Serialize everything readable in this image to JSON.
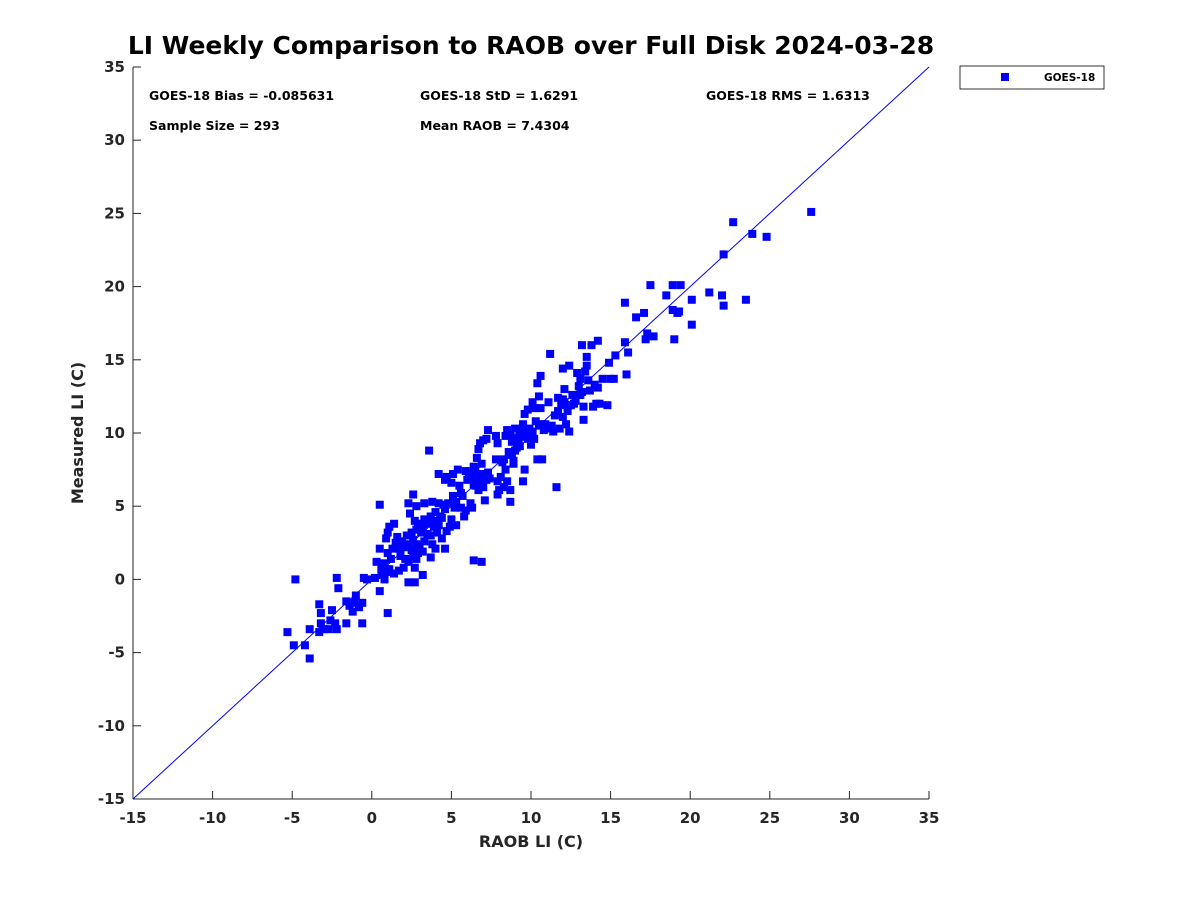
{
  "chart_data": {
    "type": "scatter",
    "title": "LI Weekly Comparison to RAOB over Full Disk 2024-03-28",
    "xlabel": "RAOB LI (C)",
    "ylabel": "Measured LI (C)",
    "xlim": [
      -15,
      35
    ],
    "ylim": [
      -15,
      35
    ],
    "x_ticks": [
      -15,
      -10,
      -5,
      0,
      5,
      10,
      15,
      20,
      25,
      30,
      35
    ],
    "y_ticks": [
      -15,
      -10,
      -5,
      0,
      5,
      10,
      15,
      20,
      25,
      30,
      35
    ],
    "grid": false,
    "legend_position": "outside-top-right",
    "reference_line": {
      "label": "1:1",
      "x": [
        -15,
        35
      ],
      "y": [
        -15,
        35
      ],
      "color": "#0000ff"
    },
    "annotations": [
      {
        "id": "bias",
        "text": "GOES-18 Bias = -0.085631"
      },
      {
        "id": "std",
        "text": "GOES-18 StD = 1.6291"
      },
      {
        "id": "rms",
        "text": "GOES-18 RMS = 1.6313"
      },
      {
        "id": "sample",
        "text": "Sample Size = 293"
      },
      {
        "id": "mean",
        "text": "Mean RAOB = 7.4304"
      }
    ],
    "series": [
      {
        "name": "GOES-18",
        "color": "#0000ff",
        "marker": "square",
        "points": [
          [
            -5.3,
            -3.6
          ],
          [
            -4.9,
            -4.5
          ],
          [
            -4.8,
            0.0
          ],
          [
            -4.2,
            -4.5
          ],
          [
            -3.9,
            -5.4
          ],
          [
            -3.9,
            -3.4
          ],
          [
            -3.3,
            -1.7
          ],
          [
            -3.3,
            -3.6
          ],
          [
            -3.2,
            -3.0
          ],
          [
            -3.2,
            -2.3
          ],
          [
            -3.0,
            -3.4
          ],
          [
            -2.7,
            -3.4
          ],
          [
            -2.6,
            -2.8
          ],
          [
            -2.5,
            -2.1
          ],
          [
            -2.3,
            -3.0
          ],
          [
            -2.2,
            -3.4
          ],
          [
            -2.2,
            0.1
          ],
          [
            -2.1,
            -0.6
          ],
          [
            -1.6,
            -1.5
          ],
          [
            -1.6,
            -3.0
          ],
          [
            -1.4,
            -1.8
          ],
          [
            -1.2,
            -2.2
          ],
          [
            -1.1,
            -1.6
          ],
          [
            -1.0,
            -1.1
          ],
          [
            -0.8,
            -1.9
          ],
          [
            -0.6,
            -1.6
          ],
          [
            -0.6,
            -3.0
          ],
          [
            -0.5,
            0.1
          ],
          [
            -0.3,
            0.0
          ],
          [
            0.2,
            0.1
          ],
          [
            0.3,
            1.2
          ],
          [
            0.5,
            5.1
          ],
          [
            0.5,
            2.1
          ],
          [
            0.5,
            -0.8
          ],
          [
            0.6,
            0.7
          ],
          [
            0.7,
            0.3
          ],
          [
            0.8,
            1.1
          ],
          [
            0.8,
            0.0
          ],
          [
            0.9,
            2.8
          ],
          [
            0.9,
            0.5
          ],
          [
            1.0,
            3.2
          ],
          [
            1.0,
            1.8
          ],
          [
            1.1,
            0.7
          ],
          [
            1.1,
            3.6
          ],
          [
            1.0,
            -2.3
          ],
          [
            1.2,
            1.4
          ],
          [
            1.3,
            2.1
          ],
          [
            1.4,
            3.8
          ],
          [
            1.4,
            0.4
          ],
          [
            1.5,
            2.5
          ],
          [
            1.6,
            2.9
          ],
          [
            1.7,
            0.6
          ],
          [
            1.8,
            2.0
          ],
          [
            1.8,
            1.6
          ],
          [
            1.9,
            2.6
          ],
          [
            2.0,
            0.8
          ],
          [
            2.0,
            2.2
          ],
          [
            2.1,
            1.4
          ],
          [
            2.2,
            3.0
          ],
          [
            2.3,
            5.2
          ],
          [
            2.3,
            2.4
          ],
          [
            2.3,
            -0.2
          ],
          [
            2.3,
            1.2
          ],
          [
            2.4,
            4.5
          ],
          [
            2.5,
            2.0
          ],
          [
            2.5,
            3.2
          ],
          [
            2.6,
            5.8
          ],
          [
            2.6,
            2.7
          ],
          [
            2.6,
            1.6
          ],
          [
            2.7,
            0.8
          ],
          [
            2.7,
            -0.2
          ],
          [
            2.7,
            4.0
          ],
          [
            2.8,
            2.4
          ],
          [
            2.8,
            3.4
          ],
          [
            2.8,
            1.4
          ],
          [
            2.8,
            5.0
          ],
          [
            2.9,
            1.8
          ],
          [
            3.0,
            2.2
          ],
          [
            3.1,
            3.2
          ],
          [
            3.2,
            0.3
          ],
          [
            3.2,
            3.6
          ],
          [
            3.2,
            1.9
          ],
          [
            3.3,
            4.1
          ],
          [
            3.3,
            2.6
          ],
          [
            3.3,
            5.2
          ],
          [
            3.5,
            3.8
          ],
          [
            3.5,
            3.1
          ],
          [
            3.6,
            8.8
          ],
          [
            3.7,
            4.3
          ],
          [
            3.7,
            3.0
          ],
          [
            3.7,
            1.5
          ],
          [
            3.8,
            2.4
          ],
          [
            3.8,
            5.3
          ],
          [
            3.9,
            4.0
          ],
          [
            3.9,
            3.6
          ],
          [
            4.0,
            4.6
          ],
          [
            4.0,
            2.1
          ],
          [
            4.1,
            3.2
          ],
          [
            4.2,
            5.2
          ],
          [
            4.2,
            3.7
          ],
          [
            4.2,
            7.2
          ],
          [
            4.3,
            4.3
          ],
          [
            4.4,
            2.8
          ],
          [
            4.5,
            5.1
          ],
          [
            4.6,
            4.8
          ],
          [
            4.6,
            2.1
          ],
          [
            4.6,
            6.8
          ],
          [
            4.7,
            3.3
          ],
          [
            4.7,
            7.0
          ],
          [
            4.8,
            5.2
          ],
          [
            4.9,
            3.6
          ],
          [
            5.0,
            4.1
          ],
          [
            5.0,
            6.6
          ],
          [
            5.1,
            5.7
          ],
          [
            5.1,
            7.2
          ],
          [
            5.2,
            4.9
          ],
          [
            5.3,
            5.3
          ],
          [
            5.3,
            3.7
          ],
          [
            5.4,
            7.5
          ],
          [
            5.5,
            6.4
          ],
          [
            5.6,
            5.9
          ],
          [
            5.6,
            4.9
          ],
          [
            5.7,
            5.7
          ],
          [
            5.8,
            4.3
          ],
          [
            5.9,
            7.4
          ],
          [
            5.9,
            4.7
          ],
          [
            6.0,
            6.8
          ],
          [
            6.1,
            6.9
          ],
          [
            6.2,
            5.2
          ],
          [
            6.2,
            7.0
          ],
          [
            6.3,
            7.2
          ],
          [
            6.3,
            4.9
          ],
          [
            6.4,
            6.5
          ],
          [
            6.4,
            7.7
          ],
          [
            6.4,
            1.3
          ],
          [
            6.5,
            6.4
          ],
          [
            6.5,
            7.5
          ],
          [
            6.6,
            8.3
          ],
          [
            6.6,
            6.8
          ],
          [
            6.7,
            6.1
          ],
          [
            6.7,
            8.9
          ],
          [
            6.8,
            7.2
          ],
          [
            6.8,
            9.3
          ],
          [
            6.8,
            6.6
          ],
          [
            6.9,
            7.9
          ],
          [
            6.9,
            1.2
          ],
          [
            7.0,
            6.3
          ],
          [
            7.0,
            9.5
          ],
          [
            7.1,
            7.0
          ],
          [
            7.1,
            5.4
          ],
          [
            7.2,
            9.6
          ],
          [
            7.2,
            6.8
          ],
          [
            7.3,
            10.2
          ],
          [
            7.3,
            7.3
          ],
          [
            7.8,
            9.8
          ],
          [
            7.8,
            8.2
          ],
          [
            7.9,
            9.3
          ],
          [
            7.9,
            6.7
          ],
          [
            7.9,
            5.8
          ],
          [
            8.0,
            6.1
          ],
          [
            8.1,
            7.0
          ],
          [
            8.2,
            8.0
          ],
          [
            8.3,
            6.3
          ],
          [
            8.3,
            8.2
          ],
          [
            8.4,
            9.8
          ],
          [
            8.4,
            7.5
          ],
          [
            8.5,
            10.2
          ],
          [
            8.5,
            6.7
          ],
          [
            8.6,
            8.7
          ],
          [
            8.7,
            6.1
          ],
          [
            8.7,
            5.3
          ],
          [
            8.7,
            9.9
          ],
          [
            8.8,
            8.5
          ],
          [
            8.8,
            9.4
          ],
          [
            8.9,
            8.1
          ],
          [
            8.9,
            7.9
          ],
          [
            9.0,
            9.5
          ],
          [
            9.0,
            10.3
          ],
          [
            9.0,
            8.8
          ],
          [
            9.1,
            9.0
          ],
          [
            9.2,
            9.7
          ],
          [
            9.3,
            10.2
          ],
          [
            9.3,
            9.1
          ],
          [
            9.4,
            9.8
          ],
          [
            9.5,
            6.7
          ],
          [
            9.5,
            10.6
          ],
          [
            9.6,
            7.5
          ],
          [
            9.6,
            11.3
          ],
          [
            9.7,
            10.1
          ],
          [
            9.8,
            9.6
          ],
          [
            9.8,
            11.6
          ],
          [
            9.9,
            10.3
          ],
          [
            10.0,
            9.8
          ],
          [
            10.0,
            9.2
          ],
          [
            10.1,
            10.1
          ],
          [
            10.1,
            12.1
          ],
          [
            10.2,
            11.7
          ],
          [
            10.2,
            9.6
          ],
          [
            10.3,
            10.8
          ],
          [
            10.4,
            8.2
          ],
          [
            10.4,
            13.4
          ],
          [
            10.5,
            12.5
          ],
          [
            10.5,
            10.5
          ],
          [
            10.6,
            13.9
          ],
          [
            10.6,
            11.7
          ],
          [
            10.7,
            10.6
          ],
          [
            10.7,
            8.2
          ],
          [
            10.8,
            10.2
          ],
          [
            10.9,
            10.6
          ],
          [
            11.0,
            10.3
          ],
          [
            11.1,
            12.1
          ],
          [
            11.2,
            15.4
          ],
          [
            11.3,
            10.5
          ],
          [
            11.4,
            10.1
          ],
          [
            11.5,
            11.2
          ],
          [
            11.6,
            6.3
          ],
          [
            11.7,
            11.5
          ],
          [
            11.7,
            12.4
          ],
          [
            11.8,
            10.3
          ],
          [
            11.9,
            11.9
          ],
          [
            12.0,
            12.3
          ],
          [
            12.0,
            14.4
          ],
          [
            12.0,
            11.1
          ],
          [
            12.1,
            12.1
          ],
          [
            12.1,
            13.0
          ],
          [
            12.2,
            10.6
          ],
          [
            12.3,
            11.5
          ],
          [
            12.4,
            14.6
          ],
          [
            12.4,
            11.9
          ],
          [
            12.4,
            10.1
          ],
          [
            12.5,
            11.9
          ],
          [
            12.6,
            12.6
          ],
          [
            12.7,
            12.0
          ],
          [
            12.8,
            12.2
          ],
          [
            12.9,
            14.1
          ],
          [
            13.0,
            12.6
          ],
          [
            13.0,
            13.2
          ],
          [
            13.1,
            12.6
          ],
          [
            13.1,
            13.7
          ],
          [
            13.2,
            16.0
          ],
          [
            13.2,
            12.8
          ],
          [
            13.3,
            11.8
          ],
          [
            13.3,
            10.9
          ],
          [
            13.4,
            14.2
          ],
          [
            13.5,
            14.6
          ],
          [
            13.5,
            15.2
          ],
          [
            13.6,
            13.6
          ],
          [
            13.7,
            12.9
          ],
          [
            13.8,
            16.0
          ],
          [
            13.9,
            11.8
          ],
          [
            14.0,
            13.3
          ],
          [
            14.1,
            12.0
          ],
          [
            14.2,
            13.1
          ],
          [
            14.2,
            16.3
          ],
          [
            14.3,
            12.0
          ],
          [
            14.5,
            13.7
          ],
          [
            14.8,
            11.9
          ],
          [
            14.9,
            14.8
          ],
          [
            15.0,
            13.7
          ],
          [
            15.2,
            13.7
          ],
          [
            15.3,
            15.3
          ],
          [
            15.9,
            18.9
          ],
          [
            15.9,
            16.2
          ],
          [
            16.0,
            14.0
          ],
          [
            16.1,
            15.5
          ],
          [
            16.6,
            17.9
          ],
          [
            17.1,
            18.2
          ],
          [
            17.2,
            16.4
          ],
          [
            17.3,
            16.8
          ],
          [
            17.5,
            20.1
          ],
          [
            17.7,
            16.6
          ],
          [
            18.5,
            19.4
          ],
          [
            18.9,
            18.4
          ],
          [
            18.9,
            20.1
          ],
          [
            19.0,
            16.4
          ],
          [
            19.2,
            18.2
          ],
          [
            19.4,
            20.1
          ],
          [
            19.3,
            18.3
          ],
          [
            20.1,
            17.4
          ],
          [
            20.1,
            19.1
          ],
          [
            21.2,
            19.6
          ],
          [
            22.0,
            19.4
          ],
          [
            22.1,
            22.2
          ],
          [
            22.1,
            18.7
          ],
          [
            22.7,
            24.4
          ],
          [
            23.5,
            19.1
          ],
          [
            23.9,
            23.6
          ],
          [
            24.8,
            23.4
          ],
          [
            27.6,
            25.1
          ],
          [
            2.9,
            3.8
          ],
          [
            4.4,
            4.2
          ],
          [
            7.4,
            6.9
          ],
          [
            9.2,
            9.6
          ]
        ]
      }
    ]
  }
}
